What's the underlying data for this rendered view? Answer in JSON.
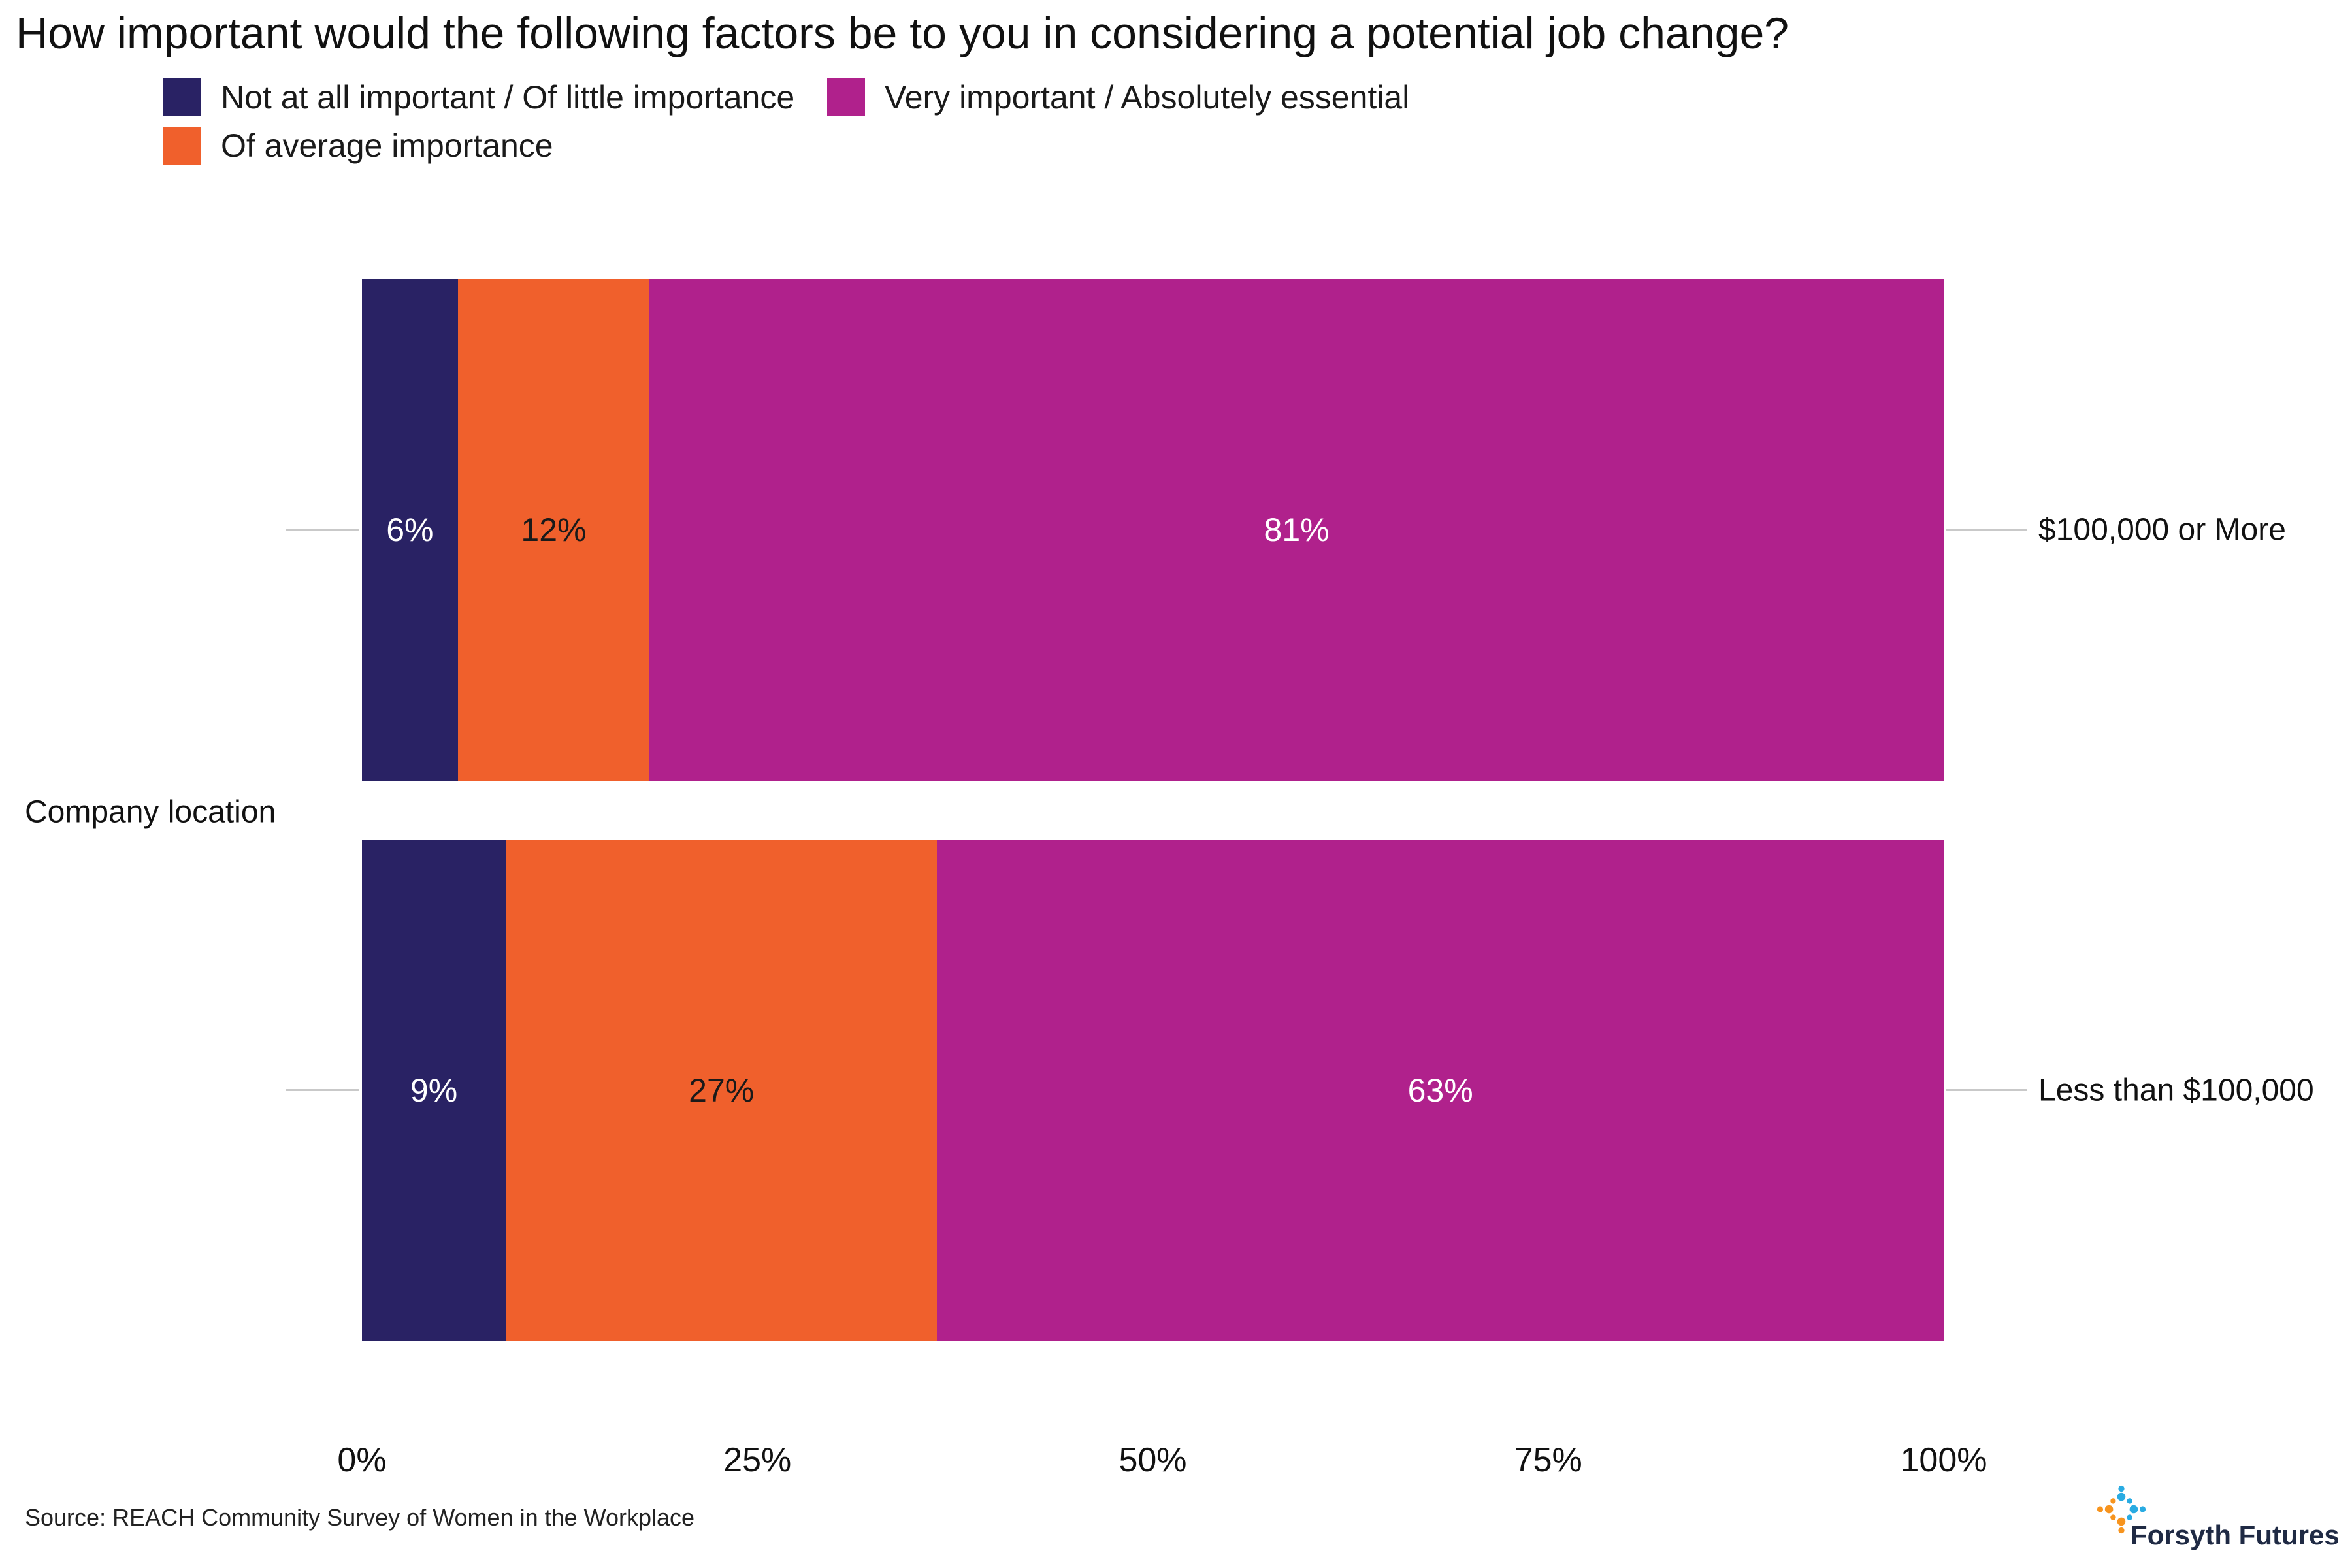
{
  "title": "How important would the following factors be to you in considering a potential job change?",
  "legend": {
    "items": [
      {
        "label": "Not at all important / Of little importance",
        "color": "#292264"
      },
      {
        "label": "Of average importance",
        "color": "#F0602C"
      },
      {
        "label": "Very important / Absolutely essential",
        "color": "#B0218C"
      }
    ]
  },
  "chart_data": {
    "type": "bar",
    "orientation": "horizontal",
    "stacked": true,
    "title": "How important would the following factors be to you in considering a potential job change?",
    "ylabel": "Company location",
    "categories": [
      "$100,000 or More",
      "Less than $100,000"
    ],
    "series": [
      {
        "name": "Not at all important / Of little importance",
        "color": "#292264",
        "text_color": "#ffffff",
        "values": [
          6,
          9
        ]
      },
      {
        "name": "Of average importance",
        "color": "#F0602C",
        "text_color": "#1a1a1a",
        "values": [
          12,
          27
        ]
      },
      {
        "name": "Very important / Absolutely essential",
        "color": "#B0218C",
        "text_color": "#ffffff",
        "values": [
          81,
          63
        ]
      }
    ],
    "value_labels": [
      [
        "6%",
        "12%",
        "81%"
      ],
      [
        "9%",
        "27%",
        "63%"
      ]
    ],
    "xlabel_ticks": [
      "0%",
      "25%",
      "50%",
      "75%",
      "100%"
    ],
    "xlim": [
      0,
      100
    ],
    "grid": "off",
    "legend_position": "top-left"
  },
  "source": "Source: REACH Community Survey of Women in the Workplace",
  "branding": {
    "name": "Forsyth Futures",
    "icon": "dotted-sparkle-icon",
    "icon_colors": [
      "#F7941E",
      "#29ABE2"
    ],
    "text_color": "#1F2A44"
  }
}
